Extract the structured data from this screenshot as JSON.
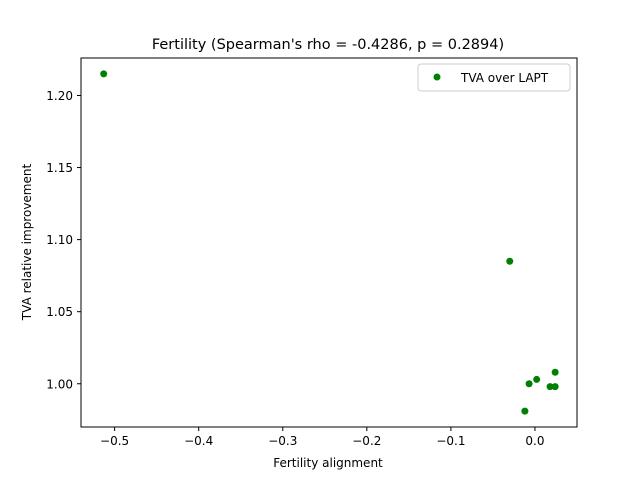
{
  "chart_data": {
    "type": "scatter",
    "title": "Fertility (Spearman's rho = -0.4286, p = 0.2894)",
    "xlabel": "Fertility alignment",
    "ylabel": "TVA relative improvement",
    "xlim": [
      -0.54,
      0.05
    ],
    "ylim": [
      0.97,
      1.226
    ],
    "xticks": [
      -0.5,
      -0.4,
      -0.3,
      -0.2,
      -0.1,
      0.0
    ],
    "xtick_labels": [
      "−0.5",
      "−0.4",
      "−0.3",
      "−0.2",
      "−0.1",
      "0.0"
    ],
    "yticks": [
      1.0,
      1.05,
      1.1,
      1.15,
      1.2
    ],
    "ytick_labels": [
      "1.00",
      "1.05",
      "1.10",
      "1.15",
      "1.20"
    ],
    "grid": false,
    "legend_position": "upper right",
    "series": [
      {
        "name": "TVA over LAPT",
        "color": "#008000",
        "points": [
          {
            "x": -0.513,
            "y": 1.215
          },
          {
            "x": -0.03,
            "y": 1.085
          },
          {
            "x": 0.024,
            "y": 1.008
          },
          {
            "x": 0.002,
            "y": 1.003
          },
          {
            "x": -0.007,
            "y": 1.0
          },
          {
            "x": 0.018,
            "y": 0.998
          },
          {
            "x": 0.024,
            "y": 0.998
          },
          {
            "x": -0.012,
            "y": 0.981
          }
        ]
      }
    ]
  }
}
